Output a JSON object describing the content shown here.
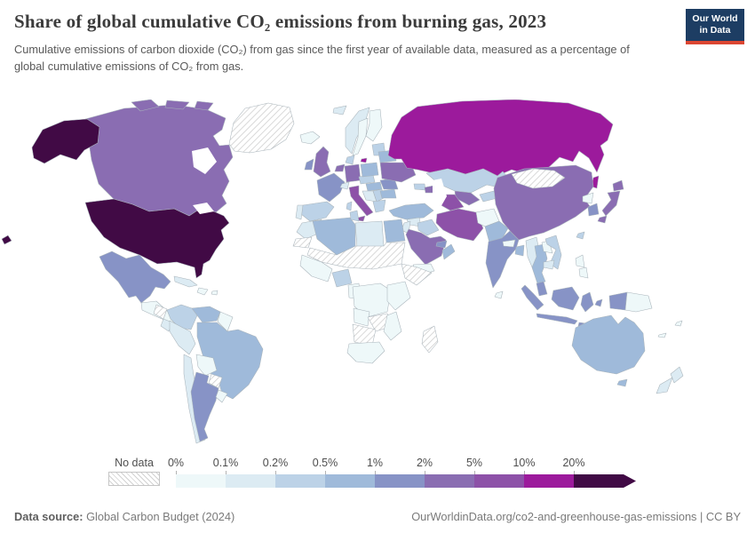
{
  "header": {
    "title": "Share of global cumulative CO₂ emissions from burning gas, 2023",
    "subtitle": "Cumulative emissions of carbon dioxide (CO₂) from gas since the first year of available data, measured as a percentage of global cumulative emissions of CO₂ from gas.",
    "logo_line1": "Our World",
    "logo_line2": "in Data",
    "logo_bg": "#1d3d63",
    "logo_accent": "#dc4632"
  },
  "legend": {
    "no_data_label": "No data",
    "tick_labels": [
      "0%",
      "0.1%",
      "0.2%",
      "0.5%",
      "1%",
      "2%",
      "5%",
      "10%",
      "20%"
    ],
    "bin_colors": [
      "#eef8f9",
      "#dcebf3",
      "#bcd2e7",
      "#9fbada",
      "#8793c6",
      "#8a6db2",
      "#8d51a8",
      "#9c1a9c",
      "#410a45"
    ]
  },
  "footer": {
    "source_label": "Data source:",
    "source_value": " Global Carbon Budget (2024)",
    "link": "OurWorldinData.org/co2-and-greenhouse-gas-emissions",
    "separator": " | ",
    "license": "CC BY"
  },
  "chart_data": {
    "type": "choropleth_map",
    "title": "Share of global cumulative CO₂ emissions from burning gas, 2023",
    "unit": "%",
    "year": 2023,
    "bin_ranges": [
      "0–0.1%",
      "0.1–0.2%",
      "0.2–0.5%",
      "0.5–1%",
      "1–2%",
      "2–5%",
      "5–10%",
      "10–20%",
      ">20%"
    ],
    "no_data_style": "gray diagonal hatching",
    "regions": [
      {
        "id": "united-states",
        "name": "United States",
        "bin": 8
      },
      {
        "id": "canada",
        "name": "Canada",
        "bin": 5
      },
      {
        "id": "greenland",
        "name": "Greenland",
        "bin": null
      },
      {
        "id": "mexico",
        "name": "Mexico",
        "bin": 4
      },
      {
        "id": "central-america",
        "name": "Central America",
        "bin": 0
      },
      {
        "id": "honduras-nicaragua",
        "name": "Honduras/Nicaragua",
        "bin": null
      },
      {
        "id": "cuba",
        "name": "Cuba",
        "bin": 1
      },
      {
        "id": "hispaniola",
        "name": "Hispaniola",
        "bin": 0
      },
      {
        "id": "puerto-rico",
        "name": "Puerto Rico",
        "bin": 0
      },
      {
        "id": "colombia",
        "name": "Colombia",
        "bin": 2
      },
      {
        "id": "venezuela",
        "name": "Venezuela",
        "bin": 3
      },
      {
        "id": "guyanas",
        "name": "Guyanas",
        "bin": 0
      },
      {
        "id": "brazil",
        "name": "Brazil",
        "bin": 3
      },
      {
        "id": "ecuador",
        "name": "Ecuador",
        "bin": 1
      },
      {
        "id": "peru",
        "name": "Peru",
        "bin": 1
      },
      {
        "id": "bolivia",
        "name": "Bolivia",
        "bin": 0
      },
      {
        "id": "paraguay",
        "name": "Paraguay",
        "bin": null
      },
      {
        "id": "chile",
        "name": "Chile",
        "bin": 1
      },
      {
        "id": "argentina",
        "name": "Argentina",
        "bin": 4
      },
      {
        "id": "uruguay",
        "name": "Uruguay",
        "bin": 0
      },
      {
        "id": "iceland",
        "name": "Iceland",
        "bin": 0
      },
      {
        "id": "svalbard",
        "name": "Svalbard",
        "bin": 1
      },
      {
        "id": "norway",
        "name": "Norway",
        "bin": 1
      },
      {
        "id": "sweden",
        "name": "Sweden",
        "bin": 0
      },
      {
        "id": "finland",
        "name": "Finland",
        "bin": 0
      },
      {
        "id": "baltics",
        "name": "Baltic states",
        "bin": 2
      },
      {
        "id": "uk",
        "name": "United Kingdom",
        "bin": 5
      },
      {
        "id": "ireland",
        "name": "Ireland",
        "bin": 4
      },
      {
        "id": "denmark",
        "name": "Denmark",
        "bin": 2
      },
      {
        "id": "netherlands",
        "name": "Netherlands",
        "bin": 5
      },
      {
        "id": "germany",
        "name": "Germany",
        "bin": 5
      },
      {
        "id": "france",
        "name": "France",
        "bin": 4
      },
      {
        "id": "spain",
        "name": "Spain",
        "bin": 2
      },
      {
        "id": "portugal",
        "name": "Portugal",
        "bin": 1
      },
      {
        "id": "switzerland",
        "name": "Switzerland",
        "bin": 1
      },
      {
        "id": "italy",
        "name": "Italy",
        "bin": 6
      },
      {
        "id": "sardinia",
        "name": "Sardinia",
        "bin": 2
      },
      {
        "id": "austria-czech",
        "name": "Austria/Czechia",
        "bin": 2
      },
      {
        "id": "poland",
        "name": "Poland",
        "bin": 3
      },
      {
        "id": "hungary-slovakia",
        "name": "Hungary/Slovakia",
        "bin": 3
      },
      {
        "id": "balkans-west",
        "name": "Western Balkans",
        "bin": 1
      },
      {
        "id": "serbia",
        "name": "Serbia",
        "bin": 2
      },
      {
        "id": "romania",
        "name": "Romania",
        "bin": 4
      },
      {
        "id": "bulgaria",
        "name": "Bulgaria",
        "bin": 3
      },
      {
        "id": "greece",
        "name": "Greece",
        "bin": 2
      },
      {
        "id": "belarus",
        "name": "Belarus",
        "bin": 3
      },
      {
        "id": "ukraine",
        "name": "Ukraine",
        "bin": 5
      },
      {
        "id": "kaliningrad",
        "name": "Kaliningrad (Russia)",
        "bin": 7
      },
      {
        "id": "russia",
        "name": "Russia",
        "bin": 7
      },
      {
        "id": "kazakhstan",
        "name": "Kazakhstan",
        "bin": 2
      },
      {
        "id": "uzbekistan",
        "name": "Uzbekistan",
        "bin": 5
      },
      {
        "id": "turkmenistan",
        "name": "Turkmenistan",
        "bin": 6
      },
      {
        "id": "kyrgyz-tajik",
        "name": "Kyrgyzstan/Tajikistan",
        "bin": 2
      },
      {
        "id": "georgia",
        "name": "Georgia",
        "bin": 2
      },
      {
        "id": "azerbaijan",
        "name": "Azerbaijan",
        "bin": 5
      },
      {
        "id": "turkey",
        "name": "Turkey",
        "bin": 3
      },
      {
        "id": "syria",
        "name": "Syria",
        "bin": 1
      },
      {
        "id": "jordan-israel",
        "name": "Jordan/Israel",
        "bin": 1
      },
      {
        "id": "iraq",
        "name": "Iraq",
        "bin": 2
      },
      {
        "id": "iran",
        "name": "Iran",
        "bin": 6
      },
      {
        "id": "afghanistan",
        "name": "Afghanistan",
        "bin": 0
      },
      {
        "id": "pakistan",
        "name": "Pakistan",
        "bin": 3
      },
      {
        "id": "saudi-arabia",
        "name": "Saudi Arabia",
        "bin": 5
      },
      {
        "id": "yemen",
        "name": "Yemen",
        "bin": 0
      },
      {
        "id": "oman",
        "name": "Oman",
        "bin": 3
      },
      {
        "id": "uae-qatar",
        "name": "UAE/Qatar",
        "bin": 4
      },
      {
        "id": "morocco",
        "name": "Morocco",
        "bin": 1
      },
      {
        "id": "west-sahara",
        "name": "Western Sahara",
        "bin": null
      },
      {
        "id": "algeria",
        "name": "Algeria",
        "bin": 3
      },
      {
        "id": "tunisia",
        "name": "Tunisia",
        "bin": 2
      },
      {
        "id": "libya",
        "name": "Libya",
        "bin": 1
      },
      {
        "id": "egypt",
        "name": "Egypt",
        "bin": 3
      },
      {
        "id": "sahel",
        "name": "Sahel band",
        "bin": null
      },
      {
        "id": "west-africa",
        "name": "West Africa",
        "bin": 0
      },
      {
        "id": "nigeria",
        "name": "Nigeria",
        "bin": 2
      },
      {
        "id": "cameroon-gabon",
        "name": "Cameroon/Gabon",
        "bin": 0
      },
      {
        "id": "horn-africa",
        "name": "Horn of Africa",
        "bin": null
      },
      {
        "id": "central-africa",
        "name": "Central Africa",
        "bin": 0
      },
      {
        "id": "east-africa",
        "name": "East Africa",
        "bin": 0
      },
      {
        "id": "angola",
        "name": "Angola",
        "bin": 0
      },
      {
        "id": "zambia-zimbabwe",
        "name": "Zambia/Zimbabwe",
        "bin": null
      },
      {
        "id": "mozambique",
        "name": "Mozambique",
        "bin": 0
      },
      {
        "id": "namibia-botswana",
        "name": "Namibia/Botswana",
        "bin": null
      },
      {
        "id": "south-africa",
        "name": "South Africa",
        "bin": 0
      },
      {
        "id": "madagascar",
        "name": "Madagascar",
        "bin": null
      },
      {
        "id": "china",
        "name": "China",
        "bin": 5
      },
      {
        "id": "mongolia",
        "name": "Mongolia",
        "bin": null
      },
      {
        "id": "india",
        "name": "India",
        "bin": 4
      },
      {
        "id": "sri-lanka",
        "name": "Sri Lanka",
        "bin": 0
      },
      {
        "id": "nepal",
        "name": "Nepal",
        "bin": 0
      },
      {
        "id": "bangladesh",
        "name": "Bangladesh",
        "bin": 3
      },
      {
        "id": "myanmar",
        "name": "Myanmar",
        "bin": 1
      },
      {
        "id": "thailand",
        "name": "Thailand",
        "bin": 3
      },
      {
        "id": "laos",
        "name": "Laos",
        "bin": 0
      },
      {
        "id": "vietnam",
        "name": "Vietnam",
        "bin": 2
      },
      {
        "id": "cambodia",
        "name": "Cambodia",
        "bin": 1
      },
      {
        "id": "malaysia",
        "name": "Malaysia",
        "bin": 4
      },
      {
        "id": "south-korea",
        "name": "South Korea",
        "bin": 4
      },
      {
        "id": "north-korea",
        "name": "North Korea",
        "bin": 0
      },
      {
        "id": "japan",
        "name": "Japan",
        "bin": 5
      },
      {
        "id": "taiwan",
        "name": "Taiwan",
        "bin": 2
      },
      {
        "id": "philippines",
        "name": "Philippines",
        "bin": 0
      },
      {
        "id": "indonesia",
        "name": "Indonesia",
        "bin": 4
      },
      {
        "id": "png",
        "name": "Papua New Guinea",
        "bin": 0
      },
      {
        "id": "australia",
        "name": "Australia",
        "bin": 3
      },
      {
        "id": "new-zealand",
        "name": "New Zealand",
        "bin": 1
      },
      {
        "id": "fiji",
        "name": "Fiji",
        "bin": 0
      },
      {
        "id": "new-caledonia",
        "name": "New Caledonia",
        "bin": 0
      }
    ]
  }
}
